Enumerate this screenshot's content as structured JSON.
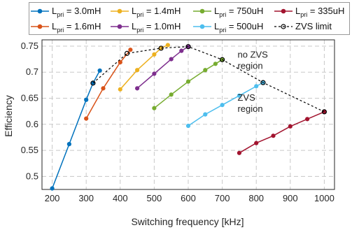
{
  "chart_data": {
    "type": "line",
    "title": "",
    "xlabel": "Switching frequency [kHz]",
    "ylabel": "Efficiency",
    "xlim": [
      170,
      1030
    ],
    "ylim": [
      0.475,
      0.762
    ],
    "xticks": [
      200,
      300,
      400,
      500,
      600,
      700,
      800,
      900,
      1000
    ],
    "yticks": [
      0.5,
      0.55,
      0.6,
      0.65,
      0.7,
      0.75
    ],
    "grid": true,
    "legend_position": "top",
    "series": [
      {
        "name": "L_pri = 3.0mH",
        "legend_main": "L",
        "legend_sub": "pri",
        "legend_rest": " = 3.0mH",
        "color": "#0072BD",
        "x": [
          200,
          250,
          300,
          320,
          340
        ],
        "y": [
          0.477,
          0.562,
          0.647,
          0.679,
          0.703
        ]
      },
      {
        "name": "L_pri = 1.6mH",
        "legend_main": "L",
        "legend_sub": "pri",
        "legend_rest": " = 1.6mH",
        "color": "#D95319",
        "x": [
          300,
          350,
          400,
          430
        ],
        "y": [
          0.611,
          0.669,
          0.719,
          0.743
        ]
      },
      {
        "name": "L_pri = 1.4mH",
        "legend_main": "L",
        "legend_sub": "pri",
        "legend_rest": " = 1.4mH",
        "color": "#EDB120",
        "x": [
          400,
          450,
          500,
          520,
          540
        ],
        "y": [
          0.667,
          0.704,
          0.734,
          0.746,
          0.752
        ]
      },
      {
        "name": "L_pri = 1.0mH",
        "legend_main": "L",
        "legend_sub": "pri",
        "legend_rest": " = 1.0mH",
        "color": "#7E2F8E",
        "x": [
          450,
          500,
          550,
          580,
          600
        ],
        "y": [
          0.669,
          0.697,
          0.725,
          0.741,
          0.749
        ]
      },
      {
        "name": "L_pri = 750uH",
        "legend_main": "L",
        "legend_sub": "pri",
        "legend_rest": " = 750uH",
        "color": "#77AC30",
        "x": [
          500,
          550,
          600,
          650,
          680,
          700
        ],
        "y": [
          0.631,
          0.657,
          0.682,
          0.704,
          0.716,
          0.724
        ]
      },
      {
        "name": "L_pri = 500uH",
        "legend_main": "L",
        "legend_sub": "pri",
        "legend_rest": " = 500uH",
        "color": "#4DBEEE",
        "x": [
          600,
          650,
          700,
          750,
          800,
          820
        ],
        "y": [
          0.597,
          0.619,
          0.637,
          0.655,
          0.673,
          0.68
        ]
      },
      {
        "name": "L_pri = 335uH",
        "legend_main": "L",
        "legend_sub": "pri",
        "legend_rest": " = 335uH",
        "color": "#A2142F",
        "x": [
          750,
          800,
          850,
          900,
          950,
          1000
        ],
        "y": [
          0.545,
          0.564,
          0.578,
          0.596,
          0.61,
          0.624
        ]
      },
      {
        "name": "ZVS limit",
        "legend_main": "ZVS limit",
        "legend_sub": "",
        "legend_rest": "",
        "color": "#000000",
        "dashed": true,
        "x": [
          320,
          420,
          520,
          600,
          700,
          820,
          1000
        ],
        "y": [
          0.679,
          0.736,
          0.746,
          0.749,
          0.724,
          0.68,
          0.624
        ]
      }
    ],
    "annotations": [
      {
        "lines": [
          "no ZVS",
          "region"
        ],
        "x": 745,
        "y": 0.728
      },
      {
        "lines": [
          "ZVS",
          "region"
        ],
        "x": 745,
        "y": 0.645
      }
    ]
  }
}
